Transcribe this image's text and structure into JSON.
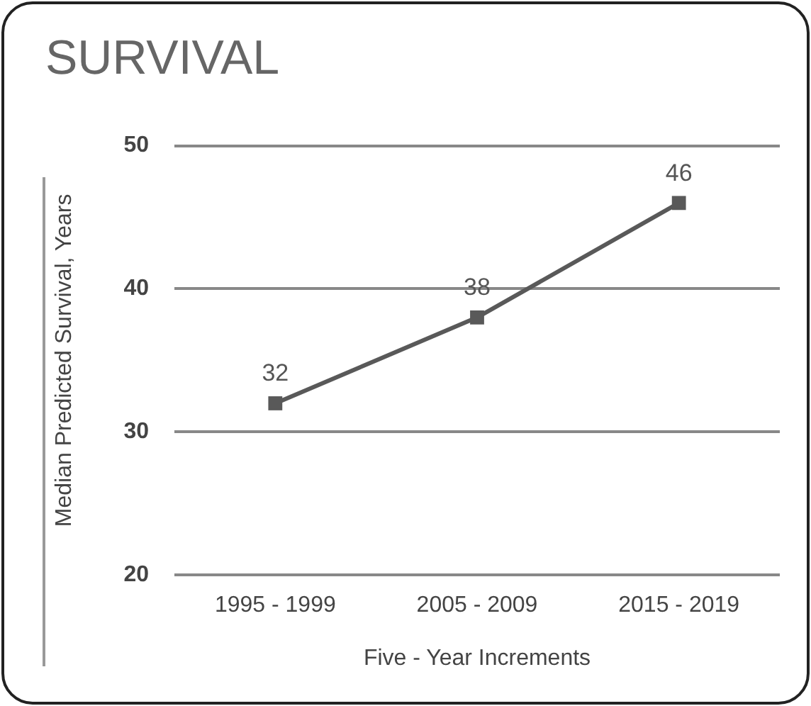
{
  "chart_data": {
    "type": "line",
    "title": "SURVIVAL",
    "xlabel": "Five - Year Increments",
    "ylabel": "Median Predicted Survival, Years",
    "categories": [
      "1995 - 1999",
      "2005 - 2009",
      "2015 - 2019"
    ],
    "series": [
      {
        "color": "#595959",
        "values": [
          32,
          38,
          46
        ]
      }
    ],
    "ylim": [
      20,
      50
    ],
    "yticks": [
      20,
      30,
      40,
      50
    ],
    "grid": "y",
    "marker": "square",
    "line_style": "solid",
    "data_labels": true,
    "legend": false
  }
}
